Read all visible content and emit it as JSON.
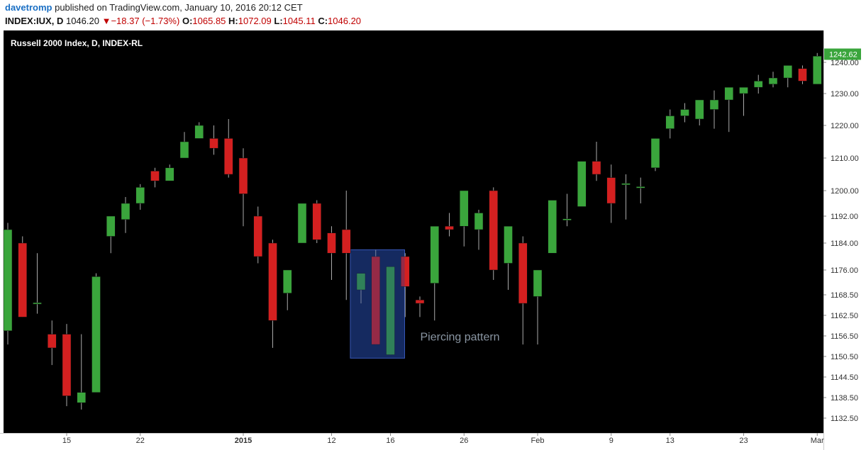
{
  "header": {
    "author": "davetromp",
    "published_text": "published on TradingView.com, January 10, 2016 20:12 CET",
    "symbol": "INDEX:IUX, D",
    "last": "1046.20",
    "change": "−18.37 (−1.73%)",
    "o_label": "O:",
    "o_value": "1065.85",
    "h_label": "H:",
    "h_value": "1072.09",
    "l_label": "L:",
    "l_value": "1045.11",
    "c_label": "C:",
    "c_value": "1046.20"
  },
  "colors": {
    "background": "#000000",
    "up": "#3aa53c",
    "down": "#d42020",
    "wick": "#aaaaaa",
    "axis_text": "#333333",
    "price_tag": "#3aa53c",
    "annotation_fill": "#1f3f8f",
    "annotation_text": "#8a96a3"
  },
  "chart_data": {
    "type": "candlestick",
    "title": "Russell 2000 Index, D, INDEX-RL",
    "last_price_label": "1242.62",
    "y_ticks": [
      "1132.50",
      "1138.50",
      "1144.50",
      "1150.50",
      "1156.50",
      "1162.50",
      "1168.50",
      "1176.00",
      "1184.00",
      "1192.00",
      "1200.00",
      "1210.00",
      "1220.00",
      "1230.00",
      "1240.00"
    ],
    "x_ticks": [
      {
        "label": "15",
        "index": 4
      },
      {
        "label": "22",
        "index": 9
      },
      {
        "label": "2015",
        "index": 16,
        "bold": true
      },
      {
        "label": "12",
        "index": 22
      },
      {
        "label": "16",
        "index": 26
      },
      {
        "label": "26",
        "index": 31
      },
      {
        "label": "Feb",
        "index": 36
      },
      {
        "label": "9",
        "index": 41
      },
      {
        "label": "13",
        "index": 45
      },
      {
        "label": "23",
        "index": 50
      },
      {
        "label": "Mar",
        "index": 55
      }
    ],
    "annotation": {
      "label": "Piercing pattern",
      "from_index": 24,
      "to_index": 26,
      "low": 1150,
      "high": 1182
    },
    "candles": [
      {
        "o": 1158,
        "h": 1190,
        "l": 1154,
        "c": 1188
      },
      {
        "o": 1184,
        "h": 1186,
        "l": 1162,
        "c": 1162
      },
      {
        "o": 1166,
        "h": 1181,
        "l": 1163,
        "c": 1166
      },
      {
        "o": 1157,
        "h": 1161,
        "l": 1148,
        "c": 1153
      },
      {
        "o": 1157,
        "h": 1160,
        "l": 1136,
        "c": 1139
      },
      {
        "o": 1137,
        "h": 1157,
        "l": 1135,
        "c": 1140
      },
      {
        "o": 1140,
        "h": 1175,
        "l": 1140,
        "c": 1174
      },
      {
        "o": 1186,
        "h": 1192,
        "l": 1181,
        "c": 1192
      },
      {
        "o": 1191,
        "h": 1198,
        "l": 1187,
        "c": 1196
      },
      {
        "o": 1196,
        "h": 1202,
        "l": 1194,
        "c": 1201
      },
      {
        "o": 1206,
        "h": 1207,
        "l": 1201,
        "c": 1203
      },
      {
        "o": 1203,
        "h": 1208,
        "l": 1203,
        "c": 1207
      },
      {
        "o": 1210,
        "h": 1218,
        "l": 1210,
        "c": 1215
      },
      {
        "o": 1216,
        "h": 1221,
        "l": 1216,
        "c": 1220
      },
      {
        "o": 1216,
        "h": 1220,
        "l": 1211,
        "c": 1213
      },
      {
        "o": 1216,
        "h": 1222,
        "l": 1204,
        "c": 1205
      },
      {
        "o": 1210,
        "h": 1213,
        "l": 1189,
        "c": 1199
      },
      {
        "o": 1192,
        "h": 1195,
        "l": 1178,
        "c": 1180
      },
      {
        "o": 1184,
        "h": 1185,
        "l": 1153,
        "c": 1161
      },
      {
        "o": 1169,
        "h": 1176,
        "l": 1164,
        "c": 1176
      },
      {
        "o": 1184,
        "h": 1196,
        "l": 1184,
        "c": 1196
      },
      {
        "o": 1196,
        "h": 1197,
        "l": 1184,
        "c": 1185
      },
      {
        "o": 1187,
        "h": 1189,
        "l": 1173,
        "c": 1181
      },
      {
        "o": 1188,
        "h": 1200,
        "l": 1167,
        "c": 1181
      },
      {
        "o": 1170,
        "h": 1175,
        "l": 1166,
        "c": 1175
      },
      {
        "o": 1180,
        "h": 1182,
        "l": 1154,
        "c": 1154
      },
      {
        "o": 1151,
        "h": 1177,
        "l": 1151,
        "c": 1177
      },
      {
        "o": 1180,
        "h": 1181,
        "l": 1162,
        "c": 1171
      },
      {
        "o": 1167,
        "h": 1168,
        "l": 1162,
        "c": 1166
      },
      {
        "o": 1172,
        "h": 1189,
        "l": 1161,
        "c": 1189
      },
      {
        "o": 1189,
        "h": 1193,
        "l": 1186,
        "c": 1188
      },
      {
        "o": 1189,
        "h": 1200,
        "l": 1183,
        "c": 1200
      },
      {
        "o": 1188,
        "h": 1194,
        "l": 1182,
        "c": 1193
      },
      {
        "o": 1200,
        "h": 1201,
        "l": 1173,
        "c": 1176
      },
      {
        "o": 1178,
        "h": 1189,
        "l": 1170,
        "c": 1189
      },
      {
        "o": 1184,
        "h": 1186,
        "l": 1154,
        "c": 1166
      },
      {
        "o": 1168,
        "h": 1176,
        "l": 1154,
        "c": 1176
      },
      {
        "o": 1181,
        "h": 1197,
        "l": 1181,
        "c": 1197
      },
      {
        "o": 1191,
        "h": 1199,
        "l": 1189,
        "c": 1191
      },
      {
        "o": 1195,
        "h": 1209,
        "l": 1195,
        "c": 1209
      },
      {
        "o": 1209,
        "h": 1215,
        "l": 1203,
        "c": 1205
      },
      {
        "o": 1204,
        "h": 1208,
        "l": 1190,
        "c": 1196
      },
      {
        "o": 1202,
        "h": 1205,
        "l": 1191,
        "c": 1202
      },
      {
        "o": 1201,
        "h": 1204,
        "l": 1196,
        "c": 1201
      },
      {
        "o": 1207,
        "h": 1216,
        "l": 1206,
        "c": 1216
      },
      {
        "o": 1219,
        "h": 1225,
        "l": 1216,
        "c": 1223
      },
      {
        "o": 1223,
        "h": 1227,
        "l": 1221,
        "c": 1225
      },
      {
        "o": 1222,
        "h": 1228,
        "l": 1220,
        "c": 1228
      },
      {
        "o": 1225,
        "h": 1231,
        "l": 1219,
        "c": 1228
      },
      {
        "o": 1228,
        "h": 1232,
        "l": 1218,
        "c": 1232
      },
      {
        "o": 1230,
        "h": 1232,
        "l": 1223,
        "c": 1232
      },
      {
        "o": 1232,
        "h": 1236,
        "l": 1230,
        "c": 1234
      },
      {
        "o": 1233,
        "h": 1237,
        "l": 1232,
        "c": 1235
      },
      {
        "o": 1235,
        "h": 1239,
        "l": 1232,
        "c": 1239
      },
      {
        "o": 1238,
        "h": 1239,
        "l": 1233,
        "c": 1234
      },
      {
        "o": 1233,
        "h": 1243,
        "l": 1233,
        "c": 1242
      }
    ]
  }
}
